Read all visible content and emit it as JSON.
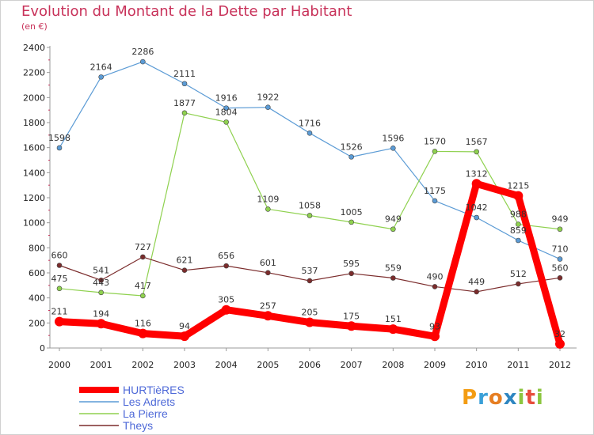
{
  "header": {
    "title": "Evolution du Montant de la Dette par Habitant",
    "subtitle": "(en €)"
  },
  "logo_text": "Proxiti",
  "chart_data": {
    "type": "line",
    "title": "Evolution du Montant de la Dette par Habitant",
    "ylabel": "(en €)",
    "xlabel": "",
    "x": [
      "2000",
      "2001",
      "2002",
      "2003",
      "2004",
      "2005",
      "2006",
      "2007",
      "2008",
      "2009",
      "2010",
      "2011",
      "2012"
    ],
    "ylim": [
      0,
      2400
    ],
    "yticks": [
      0,
      200,
      400,
      600,
      800,
      1000,
      1200,
      1400,
      1600,
      1800,
      2000,
      2200,
      2400
    ],
    "grid": false,
    "legend_position": "bottom-left",
    "series": [
      {
        "name": "HURTièRES",
        "color": "#ff0000",
        "values": [
          211,
          194,
          116,
          94,
          305,
          257,
          205,
          175,
          151,
          93,
          1312,
          1215,
          32
        ],
        "labels": [
          "211",
          "194",
          "116",
          "94",
          "305",
          "257",
          "205",
          "175",
          "151",
          "93",
          "1312",
          "1215",
          "32"
        ],
        "bold": true
      },
      {
        "name": "Les Adrets",
        "color": "#5b9bd5",
        "values": [
          1598,
          2164,
          2286,
          2111,
          1916,
          1922,
          1716,
          1526,
          1596,
          1175,
          1042,
          859,
          710
        ],
        "labels": [
          "1598",
          "2164",
          "2286",
          "2111",
          "1916",
          "1922",
          "1716",
          "1526",
          "1596",
          "1175",
          "1042",
          "859",
          "710"
        ]
      },
      {
        "name": "La Pierre",
        "color": "#8fd14f",
        "values": [
          475,
          443,
          417,
          1877,
          1804,
          1109,
          1058,
          1005,
          949,
          1570,
          1567,
          988,
          949
        ],
        "labels": [
          "475",
          "443",
          "417",
          "1877",
          "1804",
          "1109",
          "1058",
          "1005",
          "949",
          "1570",
          "1567",
          "988",
          "949"
        ]
      },
      {
        "name": "Theys",
        "color": "#7b2c2c",
        "values": [
          660,
          541,
          727,
          621,
          656,
          601,
          537,
          595,
          559,
          490,
          449,
          512,
          560
        ],
        "labels": [
          "660",
          "541",
          "727",
          "621",
          "656",
          "601",
          "537",
          "595",
          "559",
          "490",
          "449",
          "512",
          "560"
        ]
      }
    ]
  }
}
